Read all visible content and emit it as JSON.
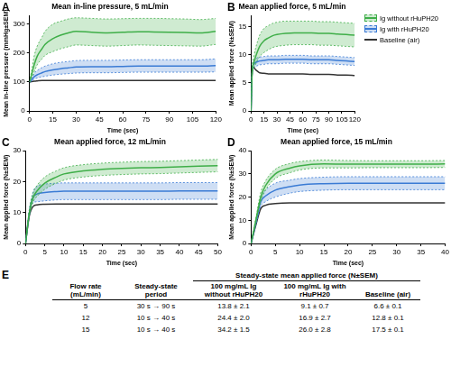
{
  "chart_data": [
    {
      "type": "line",
      "panel": "A",
      "title": "Mean in-line pressure, 5 mL/min",
      "x_label": "Time (sec)",
      "y_label": "Mean in-line pressure (mmHg±SEM)",
      "x": [
        0,
        1,
        2,
        3,
        5,
        8,
        10,
        15,
        20,
        25,
        30,
        40,
        50,
        60,
        70,
        80,
        90,
        100,
        110,
        120
      ],
      "xlim": [
        0,
        120
      ],
      "xticks": [
        0,
        15,
        30,
        45,
        60,
        75,
        90,
        105,
        120
      ],
      "ylim": [
        0,
        330
      ],
      "yticks": [
        0,
        100,
        200,
        300
      ],
      "grid": false,
      "series": [
        {
          "name": "Ig without rHuPH20",
          "color": "#3fae49",
          "values": [
            100,
            120,
            140,
            160,
            190,
            215,
            230,
            250,
            262,
            270,
            275,
            272,
            270,
            272,
            274,
            273,
            272,
            271,
            270,
            275
          ],
          "upper": [
            100,
            130,
            160,
            190,
            225,
            255,
            275,
            300,
            310,
            318,
            322,
            320,
            318,
            319,
            320,
            320,
            319,
            318,
            316,
            320
          ],
          "lower": [
            100,
            112,
            122,
            135,
            160,
            180,
            192,
            205,
            215,
            222,
            228,
            226,
            224,
            226,
            228,
            227,
            226,
            225,
            224,
            230
          ]
        },
        {
          "name": "Ig with rHuPH20",
          "color": "#3a7bd5",
          "values": [
            100,
            105,
            112,
            118,
            125,
            132,
            136,
            142,
            146,
            149,
            152,
            153,
            153,
            154,
            155,
            155,
            155,
            155,
            155,
            157
          ],
          "upper": [
            100,
            110,
            120,
            130,
            140,
            150,
            155,
            163,
            168,
            171,
            174,
            175,
            175,
            176,
            177,
            177,
            177,
            177,
            177,
            180
          ],
          "lower": [
            100,
            102,
            106,
            110,
            114,
            118,
            120,
            124,
            127,
            129,
            131,
            132,
            132,
            133,
            134,
            134,
            134,
            134,
            134,
            135
          ]
        },
        {
          "name": "Baseline (air)",
          "color": "#333333",
          "values": [
            100,
            101,
            102,
            103,
            104,
            105,
            105,
            105,
            105,
            105,
            105,
            105,
            105,
            105,
            105,
            105,
            105,
            105,
            105,
            105
          ]
        }
      ]
    },
    {
      "type": "line",
      "panel": "B",
      "title": "Mean applied force, 5 mL/min",
      "x_label": "Time (sec)",
      "y_label": "Mean applied force (N±SEM)",
      "legend": "right",
      "x": [
        0,
        1,
        2,
        3,
        5,
        8,
        10,
        15,
        20,
        25,
        30,
        40,
        50,
        60,
        70,
        80,
        90,
        100,
        110,
        120
      ],
      "xlim": [
        0,
        120
      ],
      "xticks": [
        0,
        15,
        30,
        45,
        60,
        75,
        90,
        105,
        120
      ],
      "ylim": [
        0,
        17
      ],
      "yticks": [
        0,
        5,
        10,
        15
      ],
      "grid": false,
      "series": [
        {
          "name": "Ig without rHuPH20",
          "color": "#3fae49",
          "values": [
            0,
            6,
            8,
            8.5,
            9.5,
            10.8,
            11.5,
            12.5,
            13,
            13.4,
            13.6,
            13.8,
            13.9,
            13.9,
            13.9,
            13.8,
            13.8,
            13.7,
            13.6,
            13.5
          ],
          "upper": [
            0,
            6.5,
            8.8,
            9.5,
            11,
            12.6,
            13.5,
            14.7,
            15.2,
            15.6,
            15.8,
            16,
            16,
            16,
            16,
            15.9,
            15.9,
            15.8,
            15.7,
            15.6
          ],
          "lower": [
            0,
            5.5,
            7.3,
            7.6,
            8.2,
            9.2,
            9.7,
            10.4,
            10.9,
            11.3,
            11.5,
            11.7,
            11.8,
            11.8,
            11.8,
            11.7,
            11.7,
            11.6,
            11.5,
            11.4
          ]
        },
        {
          "name": "Ig with rHuPH20",
          "color": "#3a7bd5",
          "values": [
            0,
            6,
            8,
            8.3,
            8.6,
            8.8,
            8.9,
            9,
            9.1,
            9.1,
            9.1,
            9.2,
            9.2,
            9.2,
            9.1,
            9.1,
            9.1,
            9,
            8.9,
            8.8
          ],
          "upper": [
            0,
            6.3,
            8.5,
            8.9,
            9.3,
            9.5,
            9.6,
            9.7,
            9.8,
            9.8,
            9.8,
            9.9,
            9.9,
            9.9,
            9.8,
            9.8,
            9.8,
            9.7,
            9.6,
            9.5
          ],
          "lower": [
            0,
            5.7,
            7.5,
            7.7,
            7.9,
            8.1,
            8.2,
            8.3,
            8.4,
            8.4,
            8.4,
            8.5,
            8.5,
            8.5,
            8.4,
            8.4,
            8.4,
            8.3,
            8.2,
            8.1
          ]
        },
        {
          "name": "Baseline (air)",
          "color": "#333333",
          "values": [
            0,
            6,
            7.5,
            7.8,
            7.4,
            7,
            6.8,
            6.7,
            6.6,
            6.6,
            6.6,
            6.6,
            6.6,
            6.6,
            6.5,
            6.5,
            6.5,
            6.4,
            6.4,
            6.3
          ]
        }
      ]
    },
    {
      "type": "line",
      "panel": "C",
      "title": "Mean applied force, 12 mL/min",
      "x_label": "Time (sec)",
      "y_label": "Mean applied force (N±SEM)",
      "x": [
        0,
        1,
        2,
        3,
        5,
        8,
        10,
        15,
        20,
        25,
        30,
        35,
        40,
        45,
        50
      ],
      "xlim": [
        0,
        50
      ],
      "xticks": [
        0,
        5,
        10,
        15,
        20,
        25,
        30,
        35,
        40,
        45,
        50
      ],
      "ylim": [
        0,
        30
      ],
      "yticks": [
        0,
        10,
        20,
        30
      ],
      "grid": false,
      "series": [
        {
          "name": "Ig without rHuPH20",
          "color": "#3fae49",
          "values": [
            0,
            10,
            15,
            17,
            19.5,
            21.5,
            22.5,
            23.5,
            24,
            24.3,
            24.5,
            24.6,
            24.8,
            25,
            25.2
          ],
          "upper": [
            0,
            11,
            16.5,
            18.8,
            21.5,
            23.5,
            24.5,
            25.5,
            26,
            26.3,
            26.5,
            26.6,
            26.8,
            27,
            27.2
          ],
          "lower": [
            0,
            9,
            13.5,
            15.2,
            17.5,
            19.5,
            20.5,
            21.5,
            22,
            22.3,
            22.5,
            22.6,
            22.8,
            23,
            23.2
          ]
        },
        {
          "name": "Ig with rHuPH20",
          "color": "#3a7bd5",
          "values": [
            0,
            10,
            15,
            16,
            16.5,
            16.8,
            16.9,
            16.9,
            16.9,
            16.9,
            16.9,
            16.9,
            17,
            17,
            17
          ],
          "upper": [
            0,
            11,
            16.8,
            18.5,
            19.2,
            19.5,
            19.6,
            19.6,
            19.6,
            19.6,
            19.6,
            19.6,
            19.7,
            19.7,
            19.7
          ],
          "lower": [
            0,
            9,
            13.2,
            13.5,
            13.8,
            14.1,
            14.2,
            14.2,
            14.2,
            14.2,
            14.2,
            14.2,
            14.3,
            14.3,
            14.3
          ]
        },
        {
          "name": "Baseline (air)",
          "color": "#333333",
          "values": [
            0,
            9,
            12,
            12.5,
            12.7,
            12.8,
            12.8,
            12.8,
            12.8,
            12.8,
            12.8,
            12.8,
            12.8,
            12.8,
            12.8
          ]
        }
      ]
    },
    {
      "type": "line",
      "panel": "D",
      "title": "Mean applied force, 15 mL/min",
      "x_label": "Time (sec)",
      "y_label": "Mean applied force (N±SEM)",
      "x": [
        0,
        1,
        2,
        3,
        5,
        8,
        10,
        15,
        20,
        25,
        30,
        35,
        40
      ],
      "xlim": [
        0,
        40
      ],
      "xticks": [
        0,
        5,
        10,
        15,
        20,
        25,
        30,
        35,
        40
      ],
      "ylim": [
        0,
        40
      ],
      "yticks": [
        0,
        10,
        20,
        30,
        40
      ],
      "grid": false,
      "series": [
        {
          "name": "Ig without rHuPH20",
          "color": "#3fae49",
          "values": [
            0,
            10,
            20,
            25,
            30,
            32.5,
            33.5,
            34.3,
            34.2,
            34.2,
            34.2,
            34.2,
            34.3
          ],
          "upper": [
            0,
            11,
            22,
            27,
            32,
            34.5,
            35.3,
            36,
            35.8,
            35.7,
            35.7,
            35.7,
            35.8
          ],
          "lower": [
            0,
            9,
            18,
            23,
            28,
            30.5,
            31.7,
            32.6,
            32.6,
            32.7,
            32.7,
            32.7,
            32.8
          ]
        },
        {
          "name": "Ig with rHuPH20",
          "color": "#3a7bd5",
          "values": [
            0,
            9,
            18,
            20.5,
            23,
            24.5,
            25.2,
            25.8,
            26,
            26,
            26,
            26,
            26
          ],
          "upper": [
            0,
            10,
            20,
            23,
            26,
            27.3,
            28,
            28.6,
            28.8,
            28.8,
            28.8,
            28.8,
            28.8
          ],
          "lower": [
            0,
            8,
            16,
            18,
            20,
            21.7,
            22.4,
            23,
            23.2,
            23.2,
            23.2,
            23.2,
            23.2
          ]
        },
        {
          "name": "Baseline (air)",
          "color": "#333333",
          "values": [
            0,
            8,
            15,
            16.5,
            17.2,
            17.5,
            17.5,
            17.5,
            17.5,
            17.5,
            17.5,
            17.5,
            17.5
          ]
        }
      ]
    }
  ],
  "table": {
    "panel": "E",
    "group_header": "Steady-state mean applied force (N±SEM)",
    "columns": [
      "Flow rate (mL/min)",
      "Steady-state period",
      "100 mg/mL Ig without rHuPH20",
      "100 mg/mL Ig with rHuPH20",
      "Baseline (air)"
    ],
    "rows": [
      [
        "5",
        "30 s → 90 s",
        "13.8 ± 2.1",
        "9.1 ± 0.7",
        "6.6 ± 0.1"
      ],
      [
        "12",
        "10 s → 40 s",
        "24.4 ± 2.0",
        "16.9 ± 2.7",
        "12.8 ± 0.1"
      ],
      [
        "15",
        "10 s → 40 s",
        "34.2 ± 1.5",
        "26.0 ± 2.8",
        "17.5 ± 0.1"
      ]
    ]
  }
}
